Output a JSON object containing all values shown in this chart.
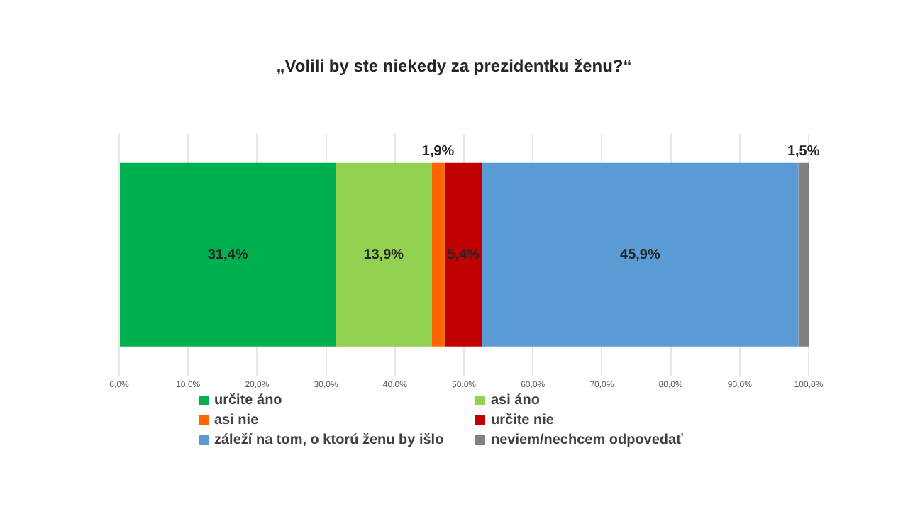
{
  "chart_data": {
    "type": "bar",
    "title": "„Volili by ste niekedy za prezidentku ženu?“",
    "orientation": "horizontal",
    "stacked": true,
    "categories": [
      null
    ],
    "series": [
      {
        "name": "určite áno",
        "color": "#00b050",
        "values": [
          31.4
        ],
        "value_labels": [
          "31,4%"
        ]
      },
      {
        "name": "asi áno",
        "color": "#92d050",
        "values": [
          13.9
        ],
        "value_labels": [
          "13,9%"
        ]
      },
      {
        "name": "asi nie",
        "color": "#ff6600",
        "values": [
          1.9
        ],
        "value_labels": [
          "1,9%"
        ]
      },
      {
        "name": "určite nie",
        "color": "#c00000",
        "values": [
          5.4
        ],
        "value_labels": [
          "5,4%"
        ]
      },
      {
        "name": "záleží na tom, o ktorú ženu by išlo",
        "color": "#5b9bd5",
        "values": [
          45.9
        ],
        "value_labels": [
          "45,9%"
        ]
      },
      {
        "name": "neviem/nechcem odpovedať",
        "color": "#808080",
        "values": [
          1.5
        ],
        "value_labels": [
          "1,5%"
        ]
      }
    ],
    "xlim": [
      0,
      100
    ],
    "xticks": [
      {
        "value": 0,
        "label": "0,0%"
      },
      {
        "value": 10,
        "label": "10,0%"
      },
      {
        "value": 20,
        "label": "20,0%"
      },
      {
        "value": 30,
        "label": "30,0%"
      },
      {
        "value": 40,
        "label": "40,0%"
      },
      {
        "value": 50,
        "label": "50,0%"
      },
      {
        "value": 60,
        "label": "60,0%"
      },
      {
        "value": 70,
        "label": "70,0%"
      },
      {
        "value": 80,
        "label": "80,0%"
      },
      {
        "value": 90,
        "label": "90,0%"
      },
      {
        "value": 100,
        "label": "100,0%"
      }
    ],
    "grid": "x",
    "legend": "bottom"
  }
}
